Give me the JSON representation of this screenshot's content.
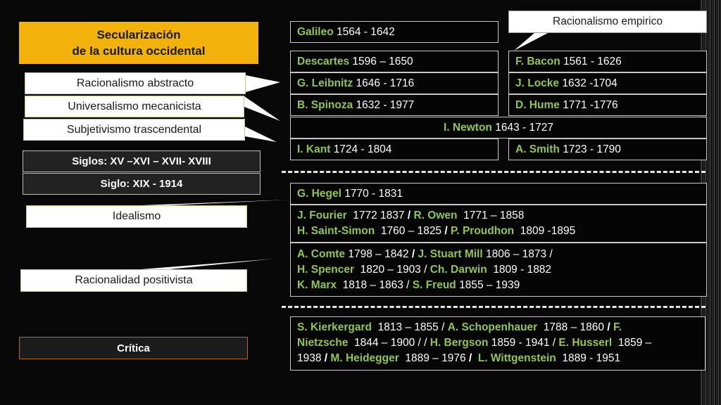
{
  "title": {
    "line1": "Secularización",
    "line2": "de la cultura occidental"
  },
  "labels": {
    "abstracto": "Racionalismo abstracto",
    "mecanicista": "Universalismo mecanicista",
    "trascendental": "Subjetivismo trascendental",
    "siglos": "Siglos:  XV –XVI – XVII- XVIII",
    "siglo_xix": "Siglo:  XIX - 1914",
    "idealismo": "Idealismo",
    "positivista": "Racionalidad positivista",
    "critica": "Crítica"
  },
  "callout": "Racionalismo empirico",
  "rationalists": {
    "galileo": {
      "name": "Galileo",
      "dates": "1564 - 1642"
    },
    "descartes": {
      "name": "Descartes",
      "dates": "1596 – 1650"
    },
    "leibnitz": {
      "name": "G. Leibnitz",
      "dates": "1646 - 1716"
    },
    "spinoza": {
      "name": "B. Spinoza",
      "dates": "1632 - 1977"
    },
    "kant": {
      "name": "I. Kant",
      "dates": "1724 - 1804"
    }
  },
  "empiricists": {
    "bacon": {
      "name": "F. Bacon",
      "dates": "1561 - 1626"
    },
    "locke": {
      "name": "J. Locke",
      "dates": "1632 -1704"
    },
    "hume": {
      "name": "D. Hume",
      "dates": "1771 -1776"
    },
    "smith": {
      "name": "A. Smith",
      "dates": "1723 - 1790"
    }
  },
  "newton": {
    "name": "I. Newton",
    "dates": "1643 - 1727"
  },
  "idealism": {
    "hegel": {
      "name": "G. Hegel",
      "dates": "1770 - 1831"
    },
    "fourier": {
      "name": "J. Fourier",
      "dates": "1772 1837"
    },
    "owen": {
      "name": "R. Owen",
      "dates": "1771 – 1858"
    },
    "saint_simon": {
      "name": "H. Saint-Simon",
      "dates": "1760 – 1825"
    },
    "proudhon": {
      "name": "P. Proudhon",
      "dates": "1809 -1895"
    }
  },
  "positivism": {
    "comte": {
      "name": "A. Comte",
      "dates": "1798 – 1842"
    },
    "mill": {
      "name": "J. Stuart Mill",
      "dates": "1806 – 1873 /"
    },
    "spencer": {
      "name": "H. Spencer",
      "dates": "1820 – 1903 /"
    },
    "darwin": {
      "name": "Ch. Darwin",
      "dates": "1809 - 1882"
    },
    "marx": {
      "name": "K. Marx",
      "dates": "1818 – 1863 /"
    },
    "freud": {
      "name": "S. Freud",
      "dates": "1855 – 1939"
    }
  },
  "critique": {
    "kierkergard": {
      "name": "S. Kierkergard",
      "dates": "1813 – 1855 /"
    },
    "schopenhauer": {
      "name": "A. Schopenhauer",
      "dates": "1788 – 1860"
    },
    "nietzsche_a": "F.",
    "nietzsche_b": "Nietzsche",
    "nietzsche_dates": "1844 – 1900 / /",
    "bergson": {
      "name": "H. Bergson",
      "dates": "1859 - 1941 /"
    },
    "husserl": {
      "name": "E. Husserl",
      "dates": "1859 –"
    },
    "husserl_end": "1938",
    "heidegger": {
      "name": "M. Heidegger",
      "dates": "1889 – 1976"
    },
    "wittgenstein": {
      "name": "L. Wittgenstein",
      "dates": "1889 - 1951"
    }
  },
  "separator": "/",
  "colors": {
    "accent": "#f2b10b",
    "name_green": "#93c45a",
    "critica_border": "#b06a35"
  }
}
